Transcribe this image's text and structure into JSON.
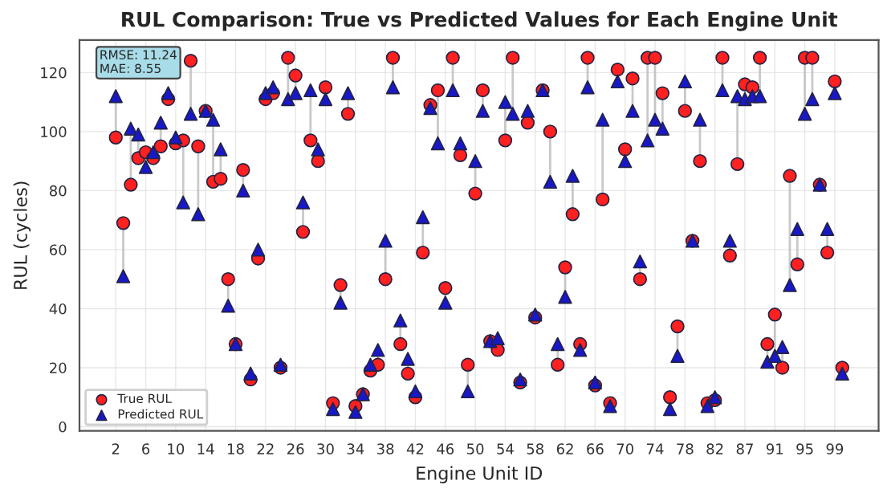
{
  "chart_data": {
    "type": "scatter",
    "title": "RUL Comparison: True vs Predicted Values for Each Engine Unit",
    "xlabel": "Engine Unit ID",
    "ylabel": "RUL (cycles)",
    "annotations": [
      "RMSE: 11.24\nMAE: 8.55"
    ],
    "categories": [
      "2",
      null,
      null,
      null,
      "6",
      null,
      null,
      null,
      "10",
      null,
      null,
      null,
      "14",
      null,
      null,
      null,
      "18",
      null,
      null,
      null,
      "22",
      null,
      null,
      null,
      "26",
      null,
      null,
      null,
      "30",
      null,
      null,
      null,
      "34",
      null,
      null,
      null,
      "38",
      null,
      null,
      null,
      "42",
      null,
      null,
      null,
      "46",
      null,
      null,
      null,
      "50",
      null,
      null,
      null,
      "54",
      null,
      null,
      null,
      "58",
      null,
      null,
      null,
      "62",
      null,
      null,
      null,
      "66",
      null,
      null,
      null,
      "70",
      null,
      null,
      null,
      "74",
      null,
      null,
      null,
      "78",
      null,
      null,
      null,
      "82",
      null,
      null,
      null,
      "87",
      null,
      null,
      null,
      "91",
      null,
      null,
      null,
      "95",
      null,
      null,
      null,
      "99",
      null
    ],
    "series": [
      {
        "name": "True RUL",
        "color": "#ff2020",
        "marker": "circle",
        "values": [
          98,
          69,
          82,
          91,
          93,
          91,
          95,
          111,
          96,
          97,
          124,
          95,
          107,
          83,
          84,
          50,
          28,
          87,
          16,
          57,
          111,
          113,
          20,
          125,
          119,
          66,
          97,
          90,
          115,
          8,
          48,
          106,
          7,
          11,
          19,
          21,
          50,
          125,
          28,
          18,
          10,
          59,
          109,
          114,
          47,
          125,
          92,
          21,
          79,
          114,
          29,
          26,
          97,
          125,
          15,
          103,
          37,
          114,
          100,
          21,
          54,
          72,
          28,
          125,
          14,
          77,
          8,
          121,
          94,
          118,
          50,
          125,
          125,
          113,
          10,
          34,
          107,
          63,
          90,
          8,
          9,
          125,
          58,
          89,
          116,
          115,
          125,
          28,
          38,
          20,
          85,
          55,
          125,
          125,
          82,
          59,
          117,
          20
        ]
      },
      {
        "name": "Predicted RUL",
        "color": "#1818c8",
        "marker": "triangle",
        "values": [
          112,
          51,
          101,
          99,
          88,
          93,
          103,
          113,
          98,
          76,
          106,
          72,
          107,
          104,
          94,
          41,
          28,
          80,
          18,
          60,
          113,
          115,
          21,
          111,
          113,
          76,
          114,
          94,
          111,
          6,
          42,
          113,
          5,
          11,
          21,
          26,
          63,
          115,
          36,
          23,
          12,
          71,
          108,
          96,
          42,
          114,
          96,
          12,
          90,
          107,
          29,
          30,
          110,
          106,
          16,
          107,
          38,
          114,
          83,
          28,
          44,
          85,
          26,
          115,
          15,
          104,
          7,
          117,
          90,
          107,
          56,
          97,
          104,
          101,
          6,
          24,
          117,
          63,
          104,
          7,
          10,
          114,
          63,
          112,
          111,
          112,
          112,
          22,
          24,
          27,
          48,
          67,
          106,
          111,
          82,
          67,
          113,
          18
        ]
      }
    ],
    "ylim": [
      -1.4,
      131
    ],
    "yticks": [
      0,
      20,
      40,
      60,
      80,
      100,
      120
    ],
    "grid": true,
    "legend": "bottom left"
  }
}
